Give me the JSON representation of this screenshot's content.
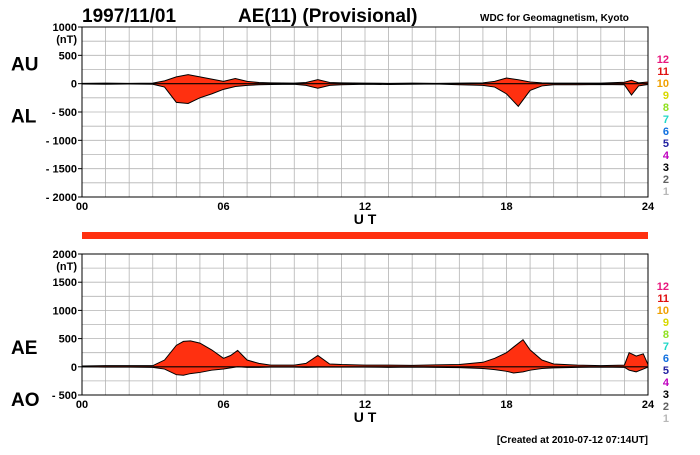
{
  "header": {
    "date": "1997/11/01",
    "title": "AE(11) (Provisional)",
    "source": "WDC for Geomagnetism, Kyoto"
  },
  "footer": {
    "created": "[Created at 2010-07-12 07:14UT]"
  },
  "station_legend": {
    "labels": [
      "12",
      "11",
      "10",
      "9",
      "8",
      "7",
      "6",
      "5",
      "4",
      "3",
      "2",
      "1"
    ],
    "colors": [
      "#e8177d",
      "#e01010",
      "#f0a000",
      "#d8d800",
      "#90e020",
      "#20d8c8",
      "#1070e0",
      "#2020a0",
      "#c000c0",
      "#000000",
      "#606060",
      "#b8b8b8"
    ]
  },
  "colors": {
    "fill": "#ff3010",
    "outline": "#000000",
    "grid": "#b4b4b4",
    "strip": "#ff3010"
  },
  "chart_data": [
    {
      "type": "area",
      "panel": "AU/AL",
      "series": [
        {
          "name": "AU",
          "x": [
            0,
            1,
            2,
            3,
            3.5,
            4,
            4.5,
            5,
            5.5,
            6,
            6.5,
            7,
            7.5,
            8,
            9,
            9.5,
            10,
            10.5,
            11,
            12,
            13,
            14,
            15,
            16,
            17,
            17.5,
            18,
            18.5,
            19,
            19.5,
            20,
            21,
            22,
            23,
            23.3,
            23.6,
            24
          ],
          "y": [
            5,
            10,
            5,
            10,
            50,
            120,
            160,
            120,
            80,
            40,
            90,
            40,
            20,
            15,
            10,
            20,
            70,
            20,
            15,
            10,
            5,
            10,
            5,
            10,
            15,
            40,
            100,
            70,
            30,
            15,
            10,
            10,
            10,
            25,
            60,
            15,
            30
          ]
        },
        {
          "name": "AL",
          "x": [
            0,
            1,
            2,
            3,
            3.5,
            4,
            4.5,
            5,
            5.5,
            6,
            6.5,
            7,
            7.5,
            8,
            9,
            9.5,
            10,
            10.5,
            11,
            12,
            13,
            14,
            15,
            16,
            17,
            17.5,
            18,
            18.5,
            19,
            19.5,
            20,
            21,
            22,
            23,
            23.3,
            23.6,
            24
          ],
          "y": [
            -5,
            -10,
            -5,
            -10,
            -60,
            -330,
            -350,
            -250,
            -180,
            -100,
            -50,
            -30,
            -20,
            -15,
            -10,
            -30,
            -80,
            -30,
            -20,
            -10,
            -15,
            -10,
            -5,
            -20,
            -30,
            -60,
            -180,
            -400,
            -120,
            -40,
            -20,
            -20,
            -15,
            -20,
            -200,
            -40,
            -15
          ]
        }
      ],
      "left_labels": [
        "AU",
        "AL"
      ],
      "unit": "(nT)",
      "ylim": [
        -2000,
        1000
      ],
      "yticks": [
        "1000",
        "500",
        "0",
        "- 500",
        "- 1000",
        "- 1500",
        "- 2000"
      ],
      "xlim": [
        0,
        24
      ],
      "xticks": [
        "00",
        "06",
        "12",
        "18",
        "24"
      ],
      "xlabel": "U T",
      "grid": true
    },
    {
      "type": "area",
      "panel": "AE/AO",
      "series": [
        {
          "name": "AE",
          "x": [
            0,
            1,
            2,
            3,
            3.5,
            4,
            4.3,
            4.6,
            5,
            5.5,
            6,
            6.3,
            6.6,
            7,
            7.5,
            8,
            9,
            9.5,
            10,
            10.5,
            11,
            12,
            13,
            14,
            15,
            16,
            17,
            17.5,
            18,
            18.3,
            18.7,
            19,
            19.5,
            20,
            21,
            22,
            23,
            23.2,
            23.5,
            23.8,
            24
          ],
          "y": [
            15,
            20,
            20,
            20,
            120,
            380,
            450,
            460,
            420,
            300,
            150,
            200,
            290,
            120,
            60,
            30,
            30,
            60,
            200,
            50,
            40,
            30,
            30,
            25,
            35,
            40,
            80,
            150,
            250,
            350,
            480,
            300,
            120,
            50,
            30,
            20,
            30,
            250,
            190,
            230,
            40
          ]
        },
        {
          "name": "AO",
          "x": [
            0,
            1,
            2,
            3,
            3.5,
            4,
            4.3,
            4.6,
            5,
            5.5,
            6,
            6.3,
            6.6,
            7,
            7.5,
            8,
            9,
            9.5,
            10,
            10.5,
            11,
            12,
            13,
            14,
            15,
            16,
            17,
            17.5,
            18,
            18.3,
            18.7,
            19,
            19.5,
            20,
            21,
            22,
            23,
            23.2,
            23.5,
            23.8,
            24
          ],
          "y": [
            0,
            -5,
            -5,
            -10,
            -40,
            -140,
            -150,
            -120,
            -100,
            -60,
            -40,
            -20,
            0,
            -10,
            -10,
            -5,
            -5,
            -10,
            -5,
            -5,
            -5,
            -5,
            -10,
            -5,
            -10,
            -15,
            -30,
            -50,
            -80,
            -110,
            -90,
            -60,
            -30,
            -20,
            -10,
            -5,
            -10,
            -60,
            -90,
            -40,
            -5
          ]
        }
      ],
      "left_labels": [
        "AE",
        "AO"
      ],
      "unit": "(nT)",
      "ylim": [
        -500,
        2000
      ],
      "yticks": [
        "2000",
        "1500",
        "1000",
        "500",
        "0",
        "- 500"
      ],
      "xlim": [
        0,
        24
      ],
      "xticks": [
        "00",
        "06",
        "12",
        "18",
        "24"
      ],
      "xlabel": "U T",
      "grid": true
    }
  ]
}
